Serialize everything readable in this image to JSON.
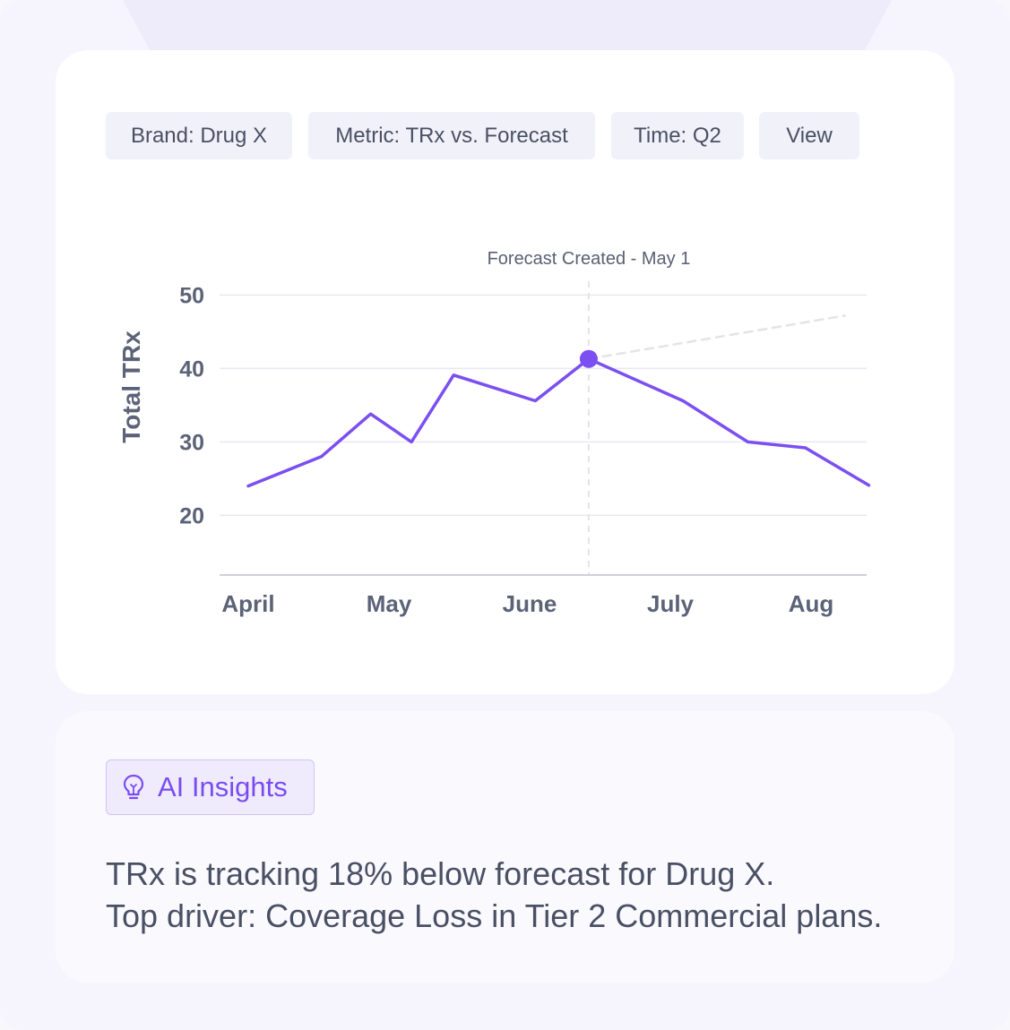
{
  "filters": {
    "brand": "Brand: Drug X",
    "metric": "Metric: TRx vs. Forecast",
    "time": "Time: Q2",
    "view": "View"
  },
  "colors": {
    "accent": "#7a4cf0",
    "line": "#7b4ff2",
    "text": "#4a5064",
    "grid": "#e8e8ef",
    "forecast_line": "#e3e3ea"
  },
  "chart_data": {
    "type": "line",
    "title": "",
    "xlabel": "",
    "ylabel": "Total TRx",
    "x_ticks": [
      "April",
      "May",
      "June",
      "July",
      "Aug"
    ],
    "y_ticks": [
      20,
      30,
      40,
      50
    ],
    "ylim": [
      12,
      50
    ],
    "grid": true,
    "annotation": "Forecast Created - May 1",
    "series": [
      {
        "name": "",
        "style": "solid",
        "x": [
          0,
          0.52,
          0.87,
          1.16,
          1.46,
          2.04,
          2.42,
          3.09,
          3.55,
          3.96,
          4.41
        ],
        "y": [
          24,
          28,
          33.8,
          30,
          39.1,
          35.6,
          41.3,
          35.6,
          30,
          29.2,
          24.1
        ]
      },
      {
        "name": "",
        "style": "dashed",
        "x": [
          2.42,
          4.24
        ],
        "y": [
          41.3,
          47.2
        ]
      }
    ],
    "marker": {
      "x": 2.42,
      "y": 41.3
    }
  },
  "insights": {
    "badge_label": "AI Insights",
    "icon": "lightbulb-icon",
    "line1": "TRx is tracking 18% below forecast for Drug X.",
    "line2": "Top driver: Coverage Loss in Tier 2 Commercial plans."
  }
}
